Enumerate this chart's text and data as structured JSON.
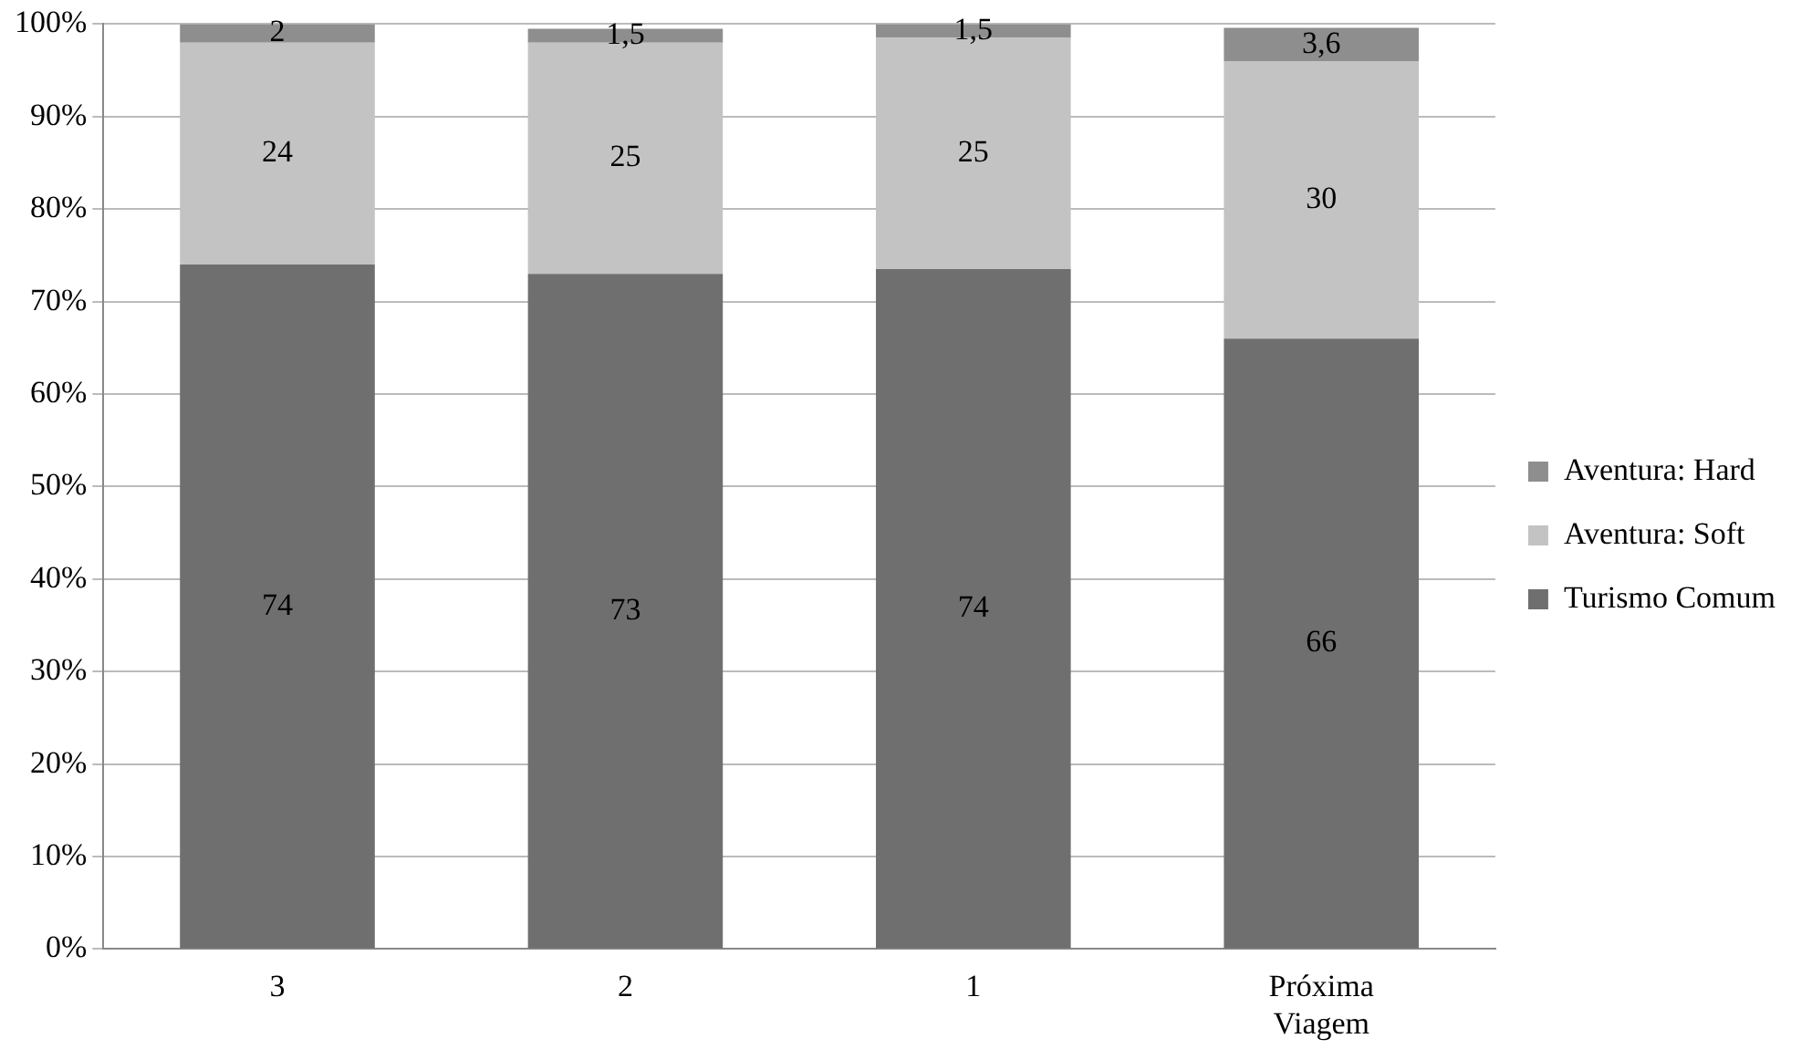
{
  "chart_data": {
    "type": "bar",
    "stacked": true,
    "categories": [
      "3",
      "2",
      "1",
      "Próxima Viagem"
    ],
    "series": [
      {
        "name": "Turismo Comum",
        "color": "#6f6f6f",
        "values": [
          74,
          73,
          73.5,
          66
        ],
        "value_labels": [
          "74",
          "73",
          "74",
          "66"
        ]
      },
      {
        "name": "Aventura: Soft",
        "color": "#c3c3c3",
        "values": [
          24,
          25,
          25,
          30
        ],
        "value_labels": [
          "24",
          "25",
          "25",
          "30"
        ]
      },
      {
        "name": "Aventura: Hard",
        "color": "#8e8e8e",
        "values": [
          2,
          1.5,
          1.5,
          3.6
        ],
        "value_labels": [
          "2",
          "1,5",
          "1,5",
          "3,6"
        ]
      }
    ],
    "ylim": [
      0,
      100
    ],
    "yticks": [
      {
        "value": 0,
        "label": "0%"
      },
      {
        "value": 10,
        "label": "10%"
      },
      {
        "value": 20,
        "label": "20%"
      },
      {
        "value": 30,
        "label": "30%"
      },
      {
        "value": 40,
        "label": "40%"
      },
      {
        "value": 50,
        "label": "50%"
      },
      {
        "value": 60,
        "label": "60%"
      },
      {
        "value": 70,
        "label": "70%"
      },
      {
        "value": 80,
        "label": "80%"
      },
      {
        "value": 90,
        "label": "90%"
      },
      {
        "value": 100,
        "label": "100%"
      }
    ],
    "grid": "y",
    "legend": "right"
  }
}
